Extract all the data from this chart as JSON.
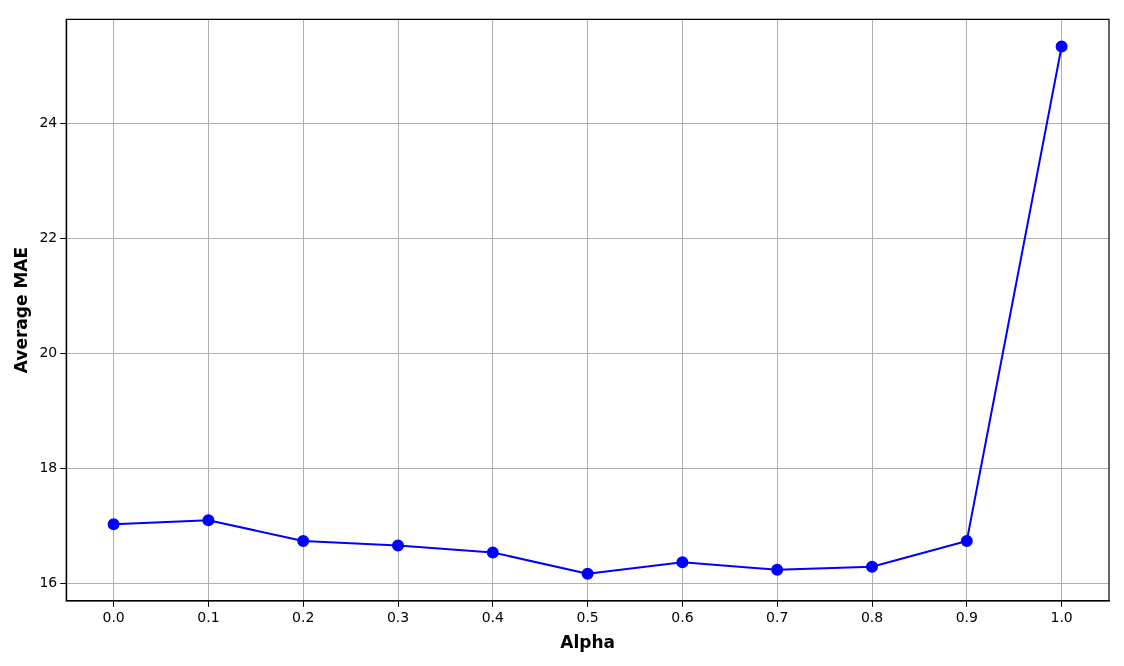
{
  "chart_data": {
    "type": "line",
    "xlabel": "Alpha",
    "ylabel": "Average MAE",
    "x": [
      0,
      0.1,
      0.2,
      0.3,
      0.4,
      0.5,
      0.6,
      0.7,
      0.8,
      0.9,
      1.0
    ],
    "series": [
      {
        "color": "#0000ff",
        "values": [
          17.03,
          17.1,
          16.74,
          16.66,
          16.54,
          16.17,
          16.37,
          16.24,
          16.29,
          16.74,
          25.33
        ]
      }
    ],
    "xlim": [
      -0.05,
      1.05
    ],
    "ylim": [
      15.7,
      25.8
    ],
    "xticks": [
      {
        "value": 0,
        "label": "0.0"
      },
      {
        "value": 0.1,
        "label": "0.1"
      },
      {
        "value": 0.2,
        "label": "0.2"
      },
      {
        "value": 0.3,
        "label": "0.3"
      },
      {
        "value": 0.4,
        "label": "0.4"
      },
      {
        "value": 0.5,
        "label": "0.5"
      },
      {
        "value": 0.6,
        "label": "0.6"
      },
      {
        "value": 0.7,
        "label": "0.7"
      },
      {
        "value": 0.8,
        "label": "0.8"
      },
      {
        "value": 0.9,
        "label": "0.9"
      },
      {
        "value": 1.0,
        "label": "1.0"
      }
    ],
    "yticks": [
      16,
      18,
      20,
      22,
      24
    ],
    "grid": true,
    "legend": false,
    "marker": "circle",
    "line_style": "solid"
  }
}
